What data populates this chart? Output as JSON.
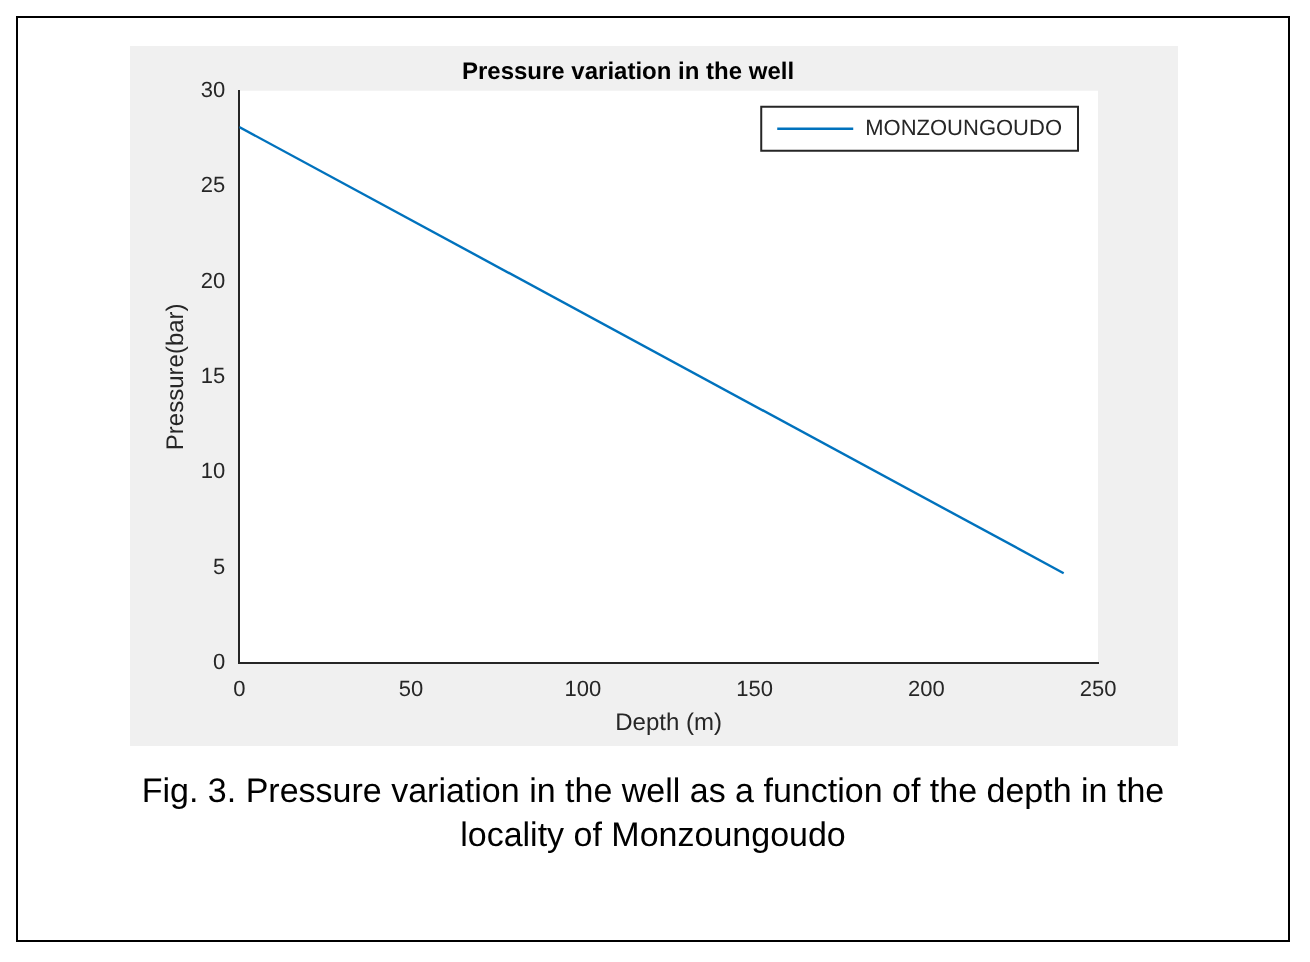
{
  "chart_data": {
    "type": "line",
    "title": "Pressure variation in the well",
    "xlabel": "Depth (m)",
    "ylabel": "Pressure(bar)",
    "x": [
      0,
      240
    ],
    "series": [
      {
        "name": "MONZOUNGOUDO",
        "color": "#0072bd",
        "values": [
          28.1,
          4.7
        ]
      }
    ],
    "xlim": [
      0,
      250
    ],
    "xticks": [
      0,
      50,
      100,
      150,
      200,
      250
    ],
    "ylim": [
      0,
      30
    ],
    "yticks": [
      0,
      5,
      10,
      15,
      20,
      25,
      30
    ],
    "grid": false,
    "legend": "top right",
    "marker": "none",
    "line_style": "solid",
    "annotations": [
      "Fig. 3. Pressure variation in the well as a function of the depth in the locality of Monzoungoudo"
    ]
  }
}
